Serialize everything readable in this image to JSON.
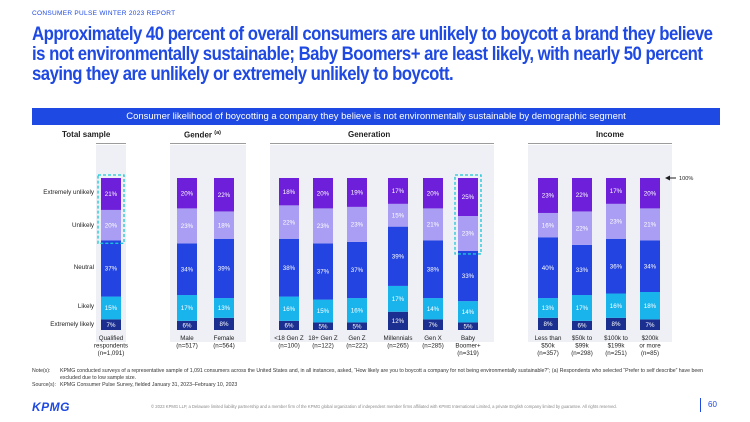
{
  "header": {
    "report_label": "CONSUMER PULSE WINTER 2023 REPORT",
    "headline": "Approximately 40 percent of overall consumers are unlikely to boycott a brand they believe is not environmentally sustainable; Baby Boomers+ are least likely, with nearly 50 percent saying they are unlikely or extremely unlikely to boycott."
  },
  "chart_data": {
    "type": "bar",
    "stacked": true,
    "percent_stacked": true,
    "title": "Consumer likelihood of boycotting a company they believe is not environmentally sustainable by demographic segment",
    "groups": [
      {
        "name": "Total sample",
        "superscript": "",
        "categories": [
          0
        ]
      },
      {
        "name": "Gender",
        "superscript": "(a)",
        "categories": [
          1,
          2
        ]
      },
      {
        "name": "Generation",
        "superscript": "",
        "categories": [
          3,
          4,
          5,
          6,
          7,
          8
        ]
      },
      {
        "name": "Income",
        "superscript": "",
        "categories": [
          9,
          10,
          11,
          12
        ]
      }
    ],
    "categories": [
      {
        "line1": "Qualified",
        "line2": "respondents",
        "line3": "(n=1,091)"
      },
      {
        "line1": "Male",
        "line2": "(n=517)",
        "line3": ""
      },
      {
        "line1": "Female",
        "line2": "(n=564)",
        "line3": ""
      },
      {
        "line1": "<18 Gen Z",
        "line2": "(n=100)",
        "line3": ""
      },
      {
        "line1": "18+ Gen Z",
        "line2": "(n=122)",
        "line3": ""
      },
      {
        "line1": "Gen Z",
        "line2": "(n=222)",
        "line3": ""
      },
      {
        "line1": "Millennials",
        "line2": "(n=265)",
        "line3": ""
      },
      {
        "line1": "Gen X",
        "line2": "(n=285)",
        "line3": ""
      },
      {
        "line1": "Baby",
        "line2": "Boomer+",
        "line3": "(n=319)"
      },
      {
        "line1": "Less than",
        "line2": "$50k",
        "line3": "(n=357)"
      },
      {
        "line1": "$50k to",
        "line2": "$99k",
        "line3": "(n=298)"
      },
      {
        "line1": "$100k to",
        "line2": "$199k",
        "line3": "(n=251)"
      },
      {
        "line1": "$200k",
        "line2": "or more",
        "line3": "(n=85)"
      }
    ],
    "series": [
      {
        "name": "Extremely likely",
        "color": "#1a2f8f",
        "values": [
          7,
          6,
          8,
          6,
          5,
          5,
          12,
          7,
          5,
          8,
          6,
          8,
          7
        ]
      },
      {
        "name": "Likely",
        "color": "#19b4ec",
        "values": [
          15,
          17,
          13,
          16,
          15,
          16,
          17,
          14,
          14,
          13,
          17,
          16,
          18
        ]
      },
      {
        "name": "Neutral",
        "color": "#2344e0",
        "values": [
          37,
          34,
          39,
          38,
          37,
          37,
          39,
          38,
          33,
          40,
          33,
          36,
          34
        ]
      },
      {
        "name": "Unlikely",
        "color": "#a99ef3",
        "values": [
          20,
          23,
          18,
          22,
          23,
          23,
          15,
          21,
          23,
          16,
          22,
          23,
          21
        ]
      },
      {
        "name": "Extremely unlikely",
        "color": "#6d1fd9",
        "values": [
          21,
          20,
          22,
          18,
          20,
          19,
          17,
          20,
          25,
          23,
          22,
          17,
          20
        ]
      }
    ],
    "row_labels": [
      "Extremely unlikely",
      "Unlikely",
      "Neutral",
      "Likely",
      "Extremely likely"
    ],
    "value_suffix": "%",
    "highlighted_categories": [
      0,
      8
    ],
    "highlight_color": "#1bc6d8",
    "top_marker_label": "100%",
    "ylim": [
      0,
      100
    ]
  },
  "notes": {
    "note_label": "Note(s):",
    "note_text": "KPMG conducted surveys of a representative sample of 1,091 consumers across the United States and, in all instances, asked, “How likely are you to boycott a company for not being environmentally sustainable?”; (a) Respondents who selected “Prefer to self describe” have been excluded due to low sample size.",
    "source_label": "Source(s):",
    "source_text": "KPMG Consumer Pulse Survey, fielded January 31, 2023–February 10, 2023"
  },
  "footer": {
    "logo": "KPMG",
    "legal": "© 2023 KPMG LLP, a Delaware limited liability partnership and a member firm of the KPMG global organization of independent member firms affiliated with KPMG International Limited, a private English company limited by guarantee. All rights reserved.",
    "page_number": "60"
  }
}
